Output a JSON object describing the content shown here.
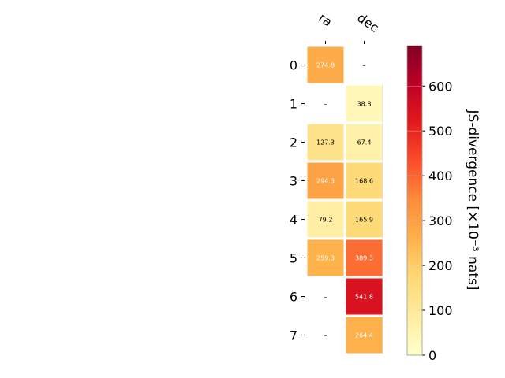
{
  "chart_data": {
    "type": "heatmap",
    "columns": [
      "ra",
      "dec"
    ],
    "rows": [
      "0",
      "1",
      "2",
      "3",
      "4",
      "5",
      "6",
      "7"
    ],
    "values": [
      [
        274.8,
        null
      ],
      [
        null,
        38.8
      ],
      [
        127.3,
        67.4
      ],
      [
        294.3,
        168.6
      ],
      [
        79.2,
        165.9
      ],
      [
        259.3,
        389.3
      ],
      [
        null,
        541.8
      ],
      [
        null,
        264.4
      ]
    ],
    "cell_labels": [
      [
        "274.8",
        "–"
      ],
      [
        "–",
        "38.8"
      ],
      [
        "127.3",
        "67.4"
      ],
      [
        "294.3",
        "168.6"
      ],
      [
        "79.2",
        "165.9"
      ],
      [
        "259.3",
        "389.3"
      ],
      [
        "–",
        "541.8"
      ],
      [
        "–",
        "264.4"
      ]
    ],
    "colorbar": {
      "label": "JS-divergence [×10⁻³ nats]",
      "vmin": 0,
      "vmax": 690,
      "ticks": [
        0,
        100,
        200,
        300,
        400,
        500,
        600
      ],
      "tick_labels": [
        "0",
        "100",
        "200",
        "300",
        "400",
        "500",
        "600"
      ],
      "colormap": "YlOrRd"
    }
  }
}
